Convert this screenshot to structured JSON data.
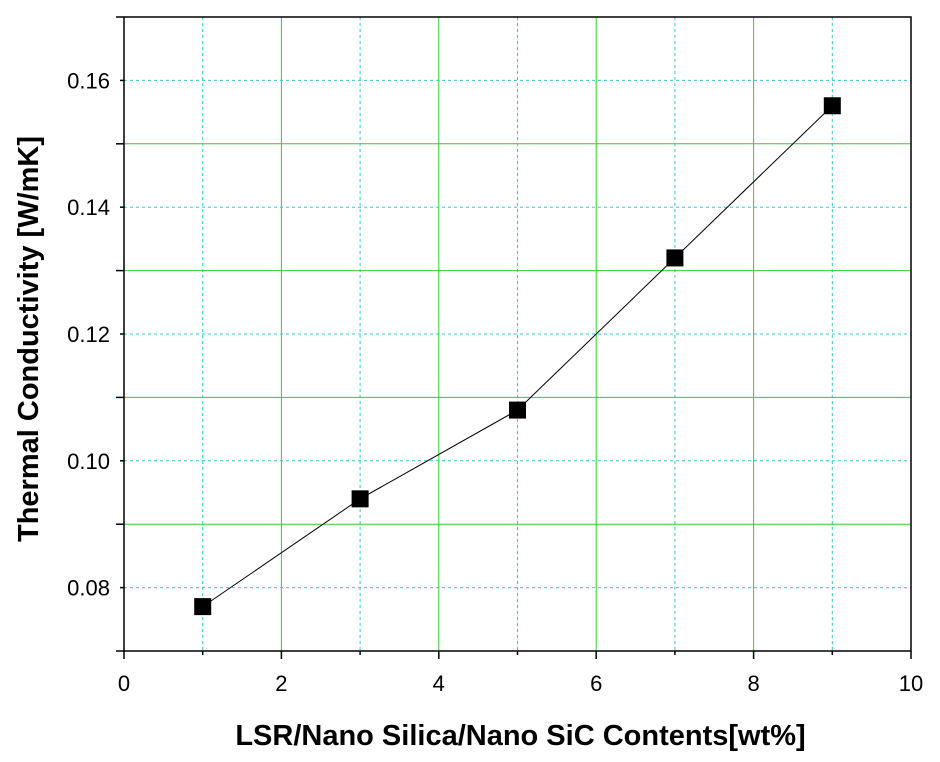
{
  "chart_data": {
    "type": "line",
    "title": "",
    "xlabel": "LSR/Nano Silica/Nano SiC Contents[wt%]",
    "ylabel": "Thermal Conductivity [W/mK]",
    "xlim": [
      0,
      10
    ],
    "ylim": [
      0.07,
      0.17
    ],
    "x_ticks": [
      0,
      2,
      4,
      6,
      8,
      10
    ],
    "x_tick_labels": [
      "0",
      "2",
      "4",
      "6",
      "8",
      "10"
    ],
    "y_ticks": [
      0.08,
      0.1,
      0.12,
      0.14,
      0.16
    ],
    "y_tick_labels": [
      "0.08",
      "0.10",
      "0.12",
      "0.14",
      "0.16"
    ],
    "grid": true,
    "legend": "none",
    "colors": {
      "major_grid": "#33cc33",
      "minor_grid": "#33cccc",
      "line": "#000000",
      "marker": "#000000"
    },
    "series": [
      {
        "marker": "square",
        "x": [
          1,
          3,
          5,
          7,
          9
        ],
        "y": [
          0.077,
          0.094,
          0.108,
          0.132,
          0.156
        ]
      }
    ]
  }
}
